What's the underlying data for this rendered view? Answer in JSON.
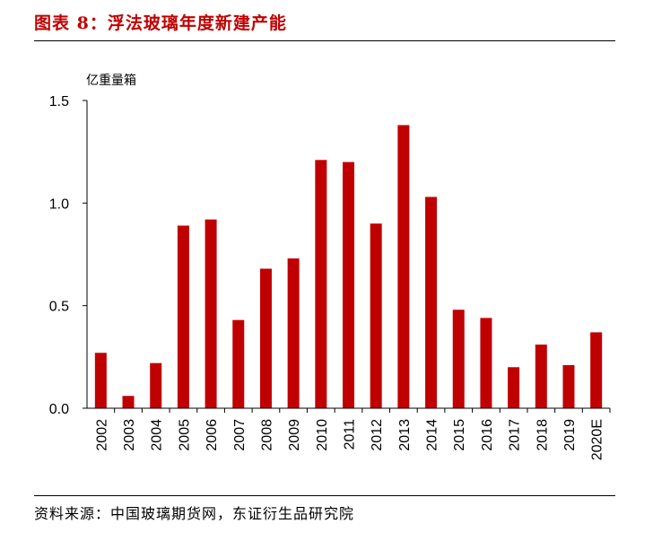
{
  "figure": {
    "title": "图表 8：浮法玻璃年度新建产能",
    "source": "资料来源：中国玻璃期货网，东证衍生品研究院"
  },
  "chart_data": {
    "type": "bar",
    "title": "",
    "ylabel": "亿重量箱",
    "xlabel": "",
    "ylim": [
      0,
      1.5
    ],
    "yticks": [
      0.0,
      0.5,
      1.0,
      1.5
    ],
    "ytick_labels": [
      "0.0",
      "0.5",
      "1.0",
      "1.5"
    ],
    "categories": [
      "2002",
      "2003",
      "2004",
      "2005",
      "2006",
      "2007",
      "2008",
      "2009",
      "2010",
      "2011",
      "2012",
      "2013",
      "2014",
      "2015",
      "2016",
      "2017",
      "2018",
      "2019",
      "2020E"
    ],
    "values": [
      0.27,
      0.06,
      0.22,
      0.89,
      0.92,
      0.43,
      0.68,
      0.73,
      1.21,
      1.2,
      0.9,
      1.38,
      1.03,
      0.48,
      0.44,
      0.2,
      0.31,
      0.21,
      0.37
    ],
    "bar_color": "#c00000",
    "grid": false,
    "legend": "none"
  }
}
